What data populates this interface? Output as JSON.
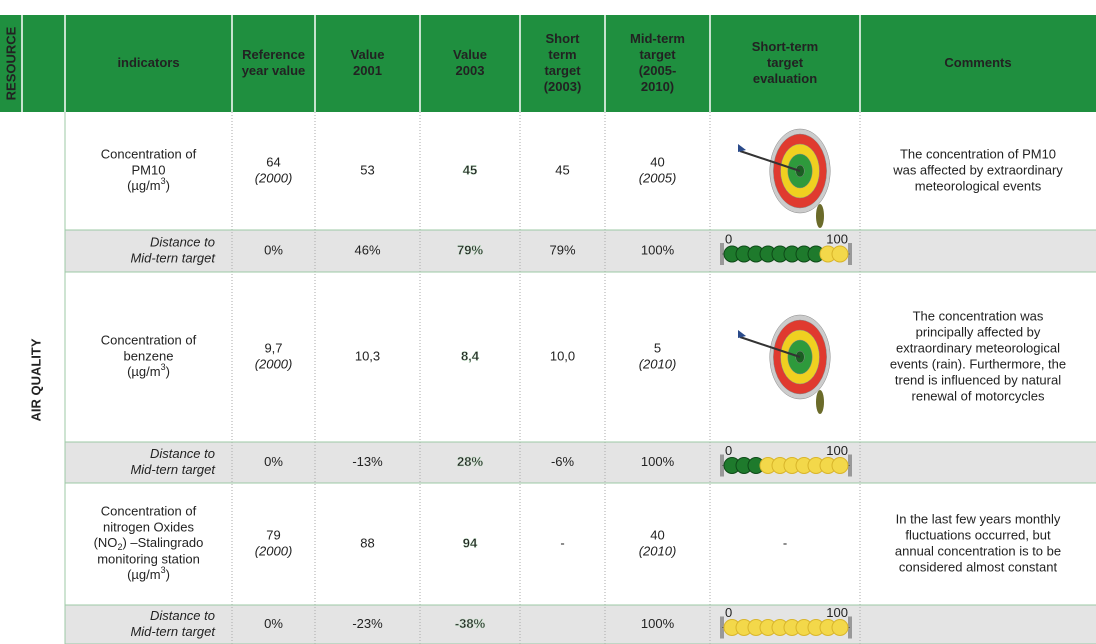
{
  "header": {
    "resource": "RESOURCE",
    "columns": [
      [
        "indicators"
      ],
      [
        "Reference",
        "year value"
      ],
      [
        "Value",
        "2001"
      ],
      [
        "Value",
        "2003"
      ],
      [
        "Short",
        "term",
        "target",
        "(2003)"
      ],
      [
        "Mid-term",
        "target",
        "(2005-",
        "2010)"
      ],
      [
        "Short-term",
        "target",
        "evaluation"
      ],
      [
        "Comments"
      ]
    ]
  },
  "section": "AIR QUALITY",
  "rows": [
    {
      "indicator": [
        "Concentration of",
        "PM10",
        {
          "pre": "(µg/m",
          "sup": "3",
          "post": ")"
        }
      ],
      "reference": {
        "value": "64",
        "year": "(2000)"
      },
      "value_2001": "53",
      "value_2003": "45",
      "short_term": "45",
      "mid_term": {
        "value": "40",
        "year": "(2005)"
      },
      "comments": [
        "The concentration of PM10",
        "was affected by extraordinary",
        "meteorological events"
      ],
      "distance": {
        "label": [
          "Distance to",
          "Mid-tern target"
        ],
        "values": [
          "0%",
          "46%",
          "79%",
          "79%",
          "100%"
        ],
        "scale": [
          "0",
          "100"
        ]
      }
    },
    {
      "indicator": [
        "Concentration of",
        "benzene",
        {
          "pre": "(µg/m",
          "sup": "3",
          "post": ")"
        }
      ],
      "reference": {
        "value": "9,7",
        "year": "(2000)"
      },
      "value_2001": "10,3",
      "value_2003": "8,4",
      "short_term": "10,0",
      "mid_term": {
        "value": "5",
        "year": "(2010)"
      },
      "comments": [
        "The concentration was",
        "principally affected by",
        "extraordinary meteorological",
        "events (rain). Furthermore, the",
        "trend is influenced by natural",
        "renewal of motorcycles"
      ],
      "distance": {
        "label": [
          "Distance to",
          "Mid-tern target"
        ],
        "values": [
          "0%",
          "-13%",
          "28%",
          "-6%",
          "100%"
        ],
        "scale": [
          "0",
          "100"
        ]
      }
    },
    {
      "indicator": [
        "Concentration of",
        "nitrogen Oxides",
        {
          "pre": "(NO",
          "sub": "2",
          "post": ") –Stalingrado"
        },
        "monitoring station",
        {
          "pre": "(µg/m",
          "sup": "3",
          "post": ")"
        }
      ],
      "reference": {
        "value": "79",
        "year": "(2000)"
      },
      "value_2001": "88",
      "value_2003": "94",
      "short_term": "-",
      "mid_term": {
        "value": "40",
        "year": "(2010)"
      },
      "evaluation": "-",
      "comments": [
        "In the last few years monthly",
        "fluctuations occurred, but",
        "annual concentration is to be",
        "considered almost constant"
      ],
      "distance": {
        "label": [
          "Distance to",
          "Mid-tern target"
        ],
        "values": [
          "0%",
          "-23%",
          "-38%",
          null,
          "100%"
        ],
        "scale": [
          "0",
          "100"
        ]
      }
    }
  ]
}
